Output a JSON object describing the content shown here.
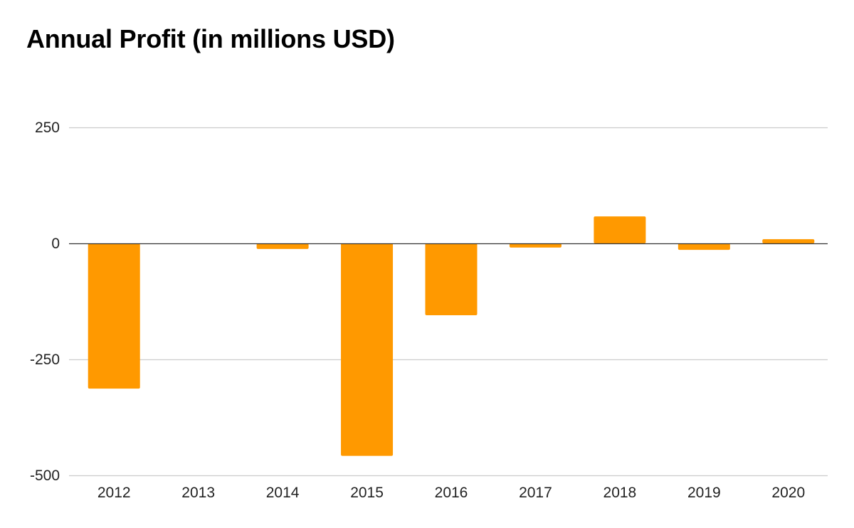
{
  "chart_data": {
    "type": "bar",
    "title": "Annual Profit (in millions USD)",
    "xlabel": "",
    "ylabel": "",
    "categories": [
      "2012",
      "2013",
      "2014",
      "2015",
      "2016",
      "2017",
      "2018",
      "2019",
      "2020"
    ],
    "series": [
      {
        "name": "Profit",
        "values": [
          -313,
          0,
          -12,
          -458,
          -155,
          -9,
          58,
          -14,
          9
        ]
      }
    ],
    "ylim": [
      -500,
      250
    ],
    "yticks": [
      250,
      0,
      -250,
      -500
    ],
    "ytick_labels": [
      "250",
      "0",
      "-250",
      "-500"
    ],
    "grid": true,
    "legend": "none",
    "colors": {
      "bar": "#ff9900",
      "gridline": "#cccccc",
      "zero_line": "#333333"
    }
  }
}
